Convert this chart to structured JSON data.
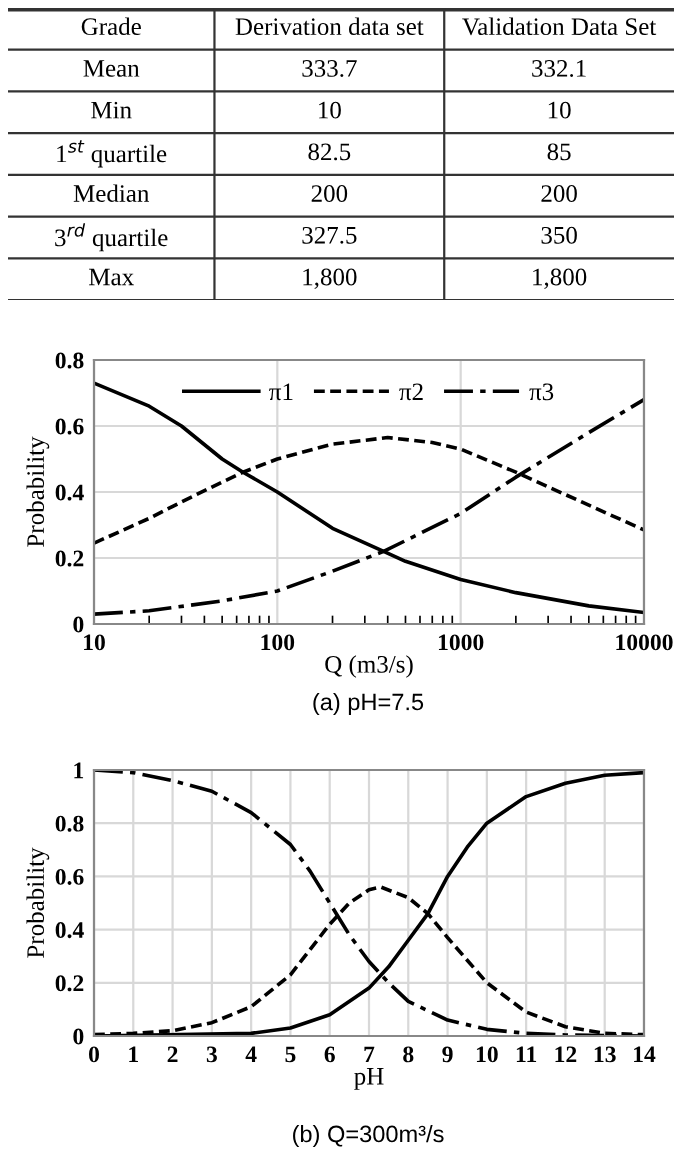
{
  "chart_data": [
    {
      "type": "other",
      "ylabel": "Grade",
      "categories": [
        "Mean",
        "Min",
        "1$^{st}$ quartile",
        "Median",
        "3$^{rd}$ quartile",
        "Max"
      ],
      "series": [
        {
          "name": "Derivation data set",
          "values": [
            333.7,
            10,
            82.5,
            200,
            327.5,
            1800
          ],
          "value_labels": [
            "333.7",
            "10",
            "82.5",
            "200",
            "327.5",
            "1,800"
          ]
        },
        {
          "name": "Validation Data Set",
          "values": [
            332.1,
            10,
            85,
            200,
            350,
            1800
          ],
          "value_labels": [
            "332.1",
            "10",
            "85",
            "200",
            "350",
            "1,800"
          ]
        }
      ]
    },
    {
      "type": "line",
      "xlabel": "Q (m3/s)",
      "ylabel": "Probability",
      "annotations": [
        "(a) pH=7.5"
      ],
      "log": "x",
      "xlim": [
        10,
        10000
      ],
      "xticks": [
        10,
        100,
        1000,
        10000
      ],
      "ylim": [
        0,
        0.8
      ],
      "yticks": [
        0,
        0.2,
        0.4,
        0.6,
        0.8
      ],
      "grid": true,
      "legend": "top",
      "series": [
        {
          "name": "π1",
          "color": "#000000",
          "line_style": "solid",
          "x": [
            10,
            20,
            30,
            50,
            65,
            100,
            200,
            380,
            500,
            1000,
            2000,
            5000,
            10000
          ],
          "values": [
            0.73,
            0.66,
            0.6,
            0.5,
            0.46,
            0.4,
            0.29,
            0.22,
            0.19,
            0.135,
            0.095,
            0.055,
            0.035
          ]
        },
        {
          "name": "π2",
          "color": "#000000",
          "line_style": "dashed",
          "x": [
            10,
            20,
            30,
            50,
            65,
            100,
            200,
            400,
            700,
            1000,
            2000,
            5000,
            10000
          ],
          "values": [
            0.245,
            0.32,
            0.37,
            0.43,
            0.46,
            0.5,
            0.545,
            0.565,
            0.55,
            0.53,
            0.46,
            0.36,
            0.285
          ]
        },
        {
          "name": "π3",
          "color": "#000000",
          "line_style": "dashdot",
          "x": [
            10,
            20,
            50,
            100,
            200,
            380,
            1000,
            2000,
            5000,
            10000
          ],
          "values": [
            0.03,
            0.04,
            0.07,
            0.1,
            0.16,
            0.22,
            0.335,
            0.445,
            0.58,
            0.68
          ]
        }
      ]
    },
    {
      "type": "line",
      "xlabel": "pH",
      "ylabel": "Probability",
      "annotations": [
        "(b) Q=300m³/s"
      ],
      "xlim": [
        0,
        14
      ],
      "xticks": [
        0,
        1,
        2,
        3,
        4,
        5,
        6,
        7,
        8,
        9,
        10,
        11,
        12,
        13,
        14
      ],
      "ylim": [
        0,
        1
      ],
      "yticks": [
        0,
        0.2,
        0.4,
        0.6,
        0.8,
        1
      ],
      "grid": true,
      "series": [
        {
          "color": "#000000",
          "line_style": "solid",
          "x": [
            0,
            4,
            5,
            6,
            7,
            7.5,
            8,
            8.5,
            9,
            9.5,
            10,
            11,
            12,
            13,
            14
          ],
          "values": [
            0,
            0.01,
            0.03,
            0.08,
            0.18,
            0.26,
            0.36,
            0.46,
            0.6,
            0.71,
            0.8,
            0.9,
            0.95,
            0.98,
            0.99
          ]
        },
        {
          "color": "#000000",
          "line_style": "dashed",
          "x": [
            0,
            1,
            2,
            3,
            4,
            5,
            6,
            6.5,
            7,
            7.3,
            8,
            8.5,
            9,
            10,
            11,
            12,
            13,
            14
          ],
          "values": [
            0.005,
            0.01,
            0.02,
            0.05,
            0.11,
            0.23,
            0.42,
            0.5,
            0.55,
            0.56,
            0.52,
            0.46,
            0.37,
            0.2,
            0.09,
            0.035,
            0.01,
            0.005
          ]
        },
        {
          "color": "#000000",
          "line_style": "dashdot",
          "x": [
            0,
            1,
            2,
            3,
            4,
            5,
            5.5,
            6,
            6.5,
            7,
            7.5,
            8,
            9,
            10,
            11,
            12,
            14
          ],
          "values": [
            1,
            0.99,
            0.96,
            0.92,
            0.84,
            0.72,
            0.62,
            0.5,
            0.38,
            0.28,
            0.2,
            0.13,
            0.06,
            0.025,
            0.01,
            0.004,
            0
          ]
        }
      ]
    }
  ]
}
